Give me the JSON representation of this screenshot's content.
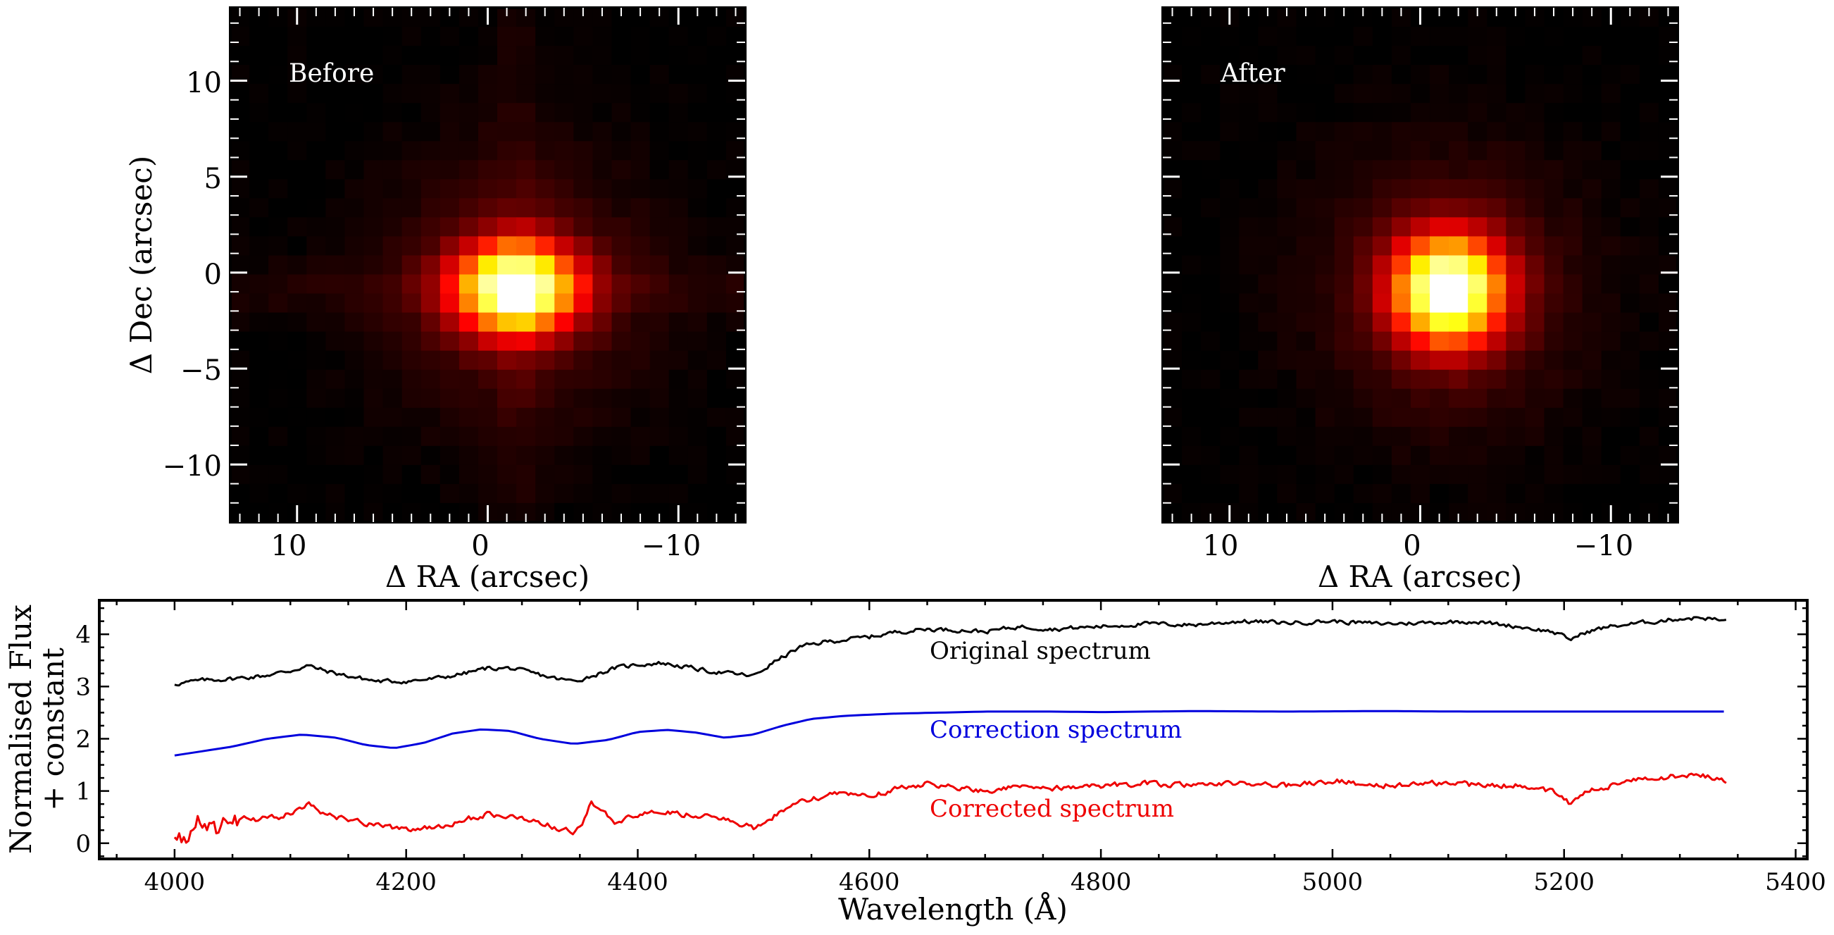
{
  "chart_data": [
    {
      "type": "heatmap",
      "title": "",
      "panel_label": "Before",
      "xlabel": "Δ RA (arcsec)",
      "ylabel": "Δ Dec (arcsec)",
      "xlim": [
        13.5,
        -13.5
      ],
      "ylim": [
        -13,
        13.8
      ],
      "x_ticks": [
        10,
        0,
        -10
      ],
      "x_tick_labels": [
        "10",
        "0",
        "−10"
      ],
      "y_ticks": [
        10,
        5,
        0,
        -5,
        -10
      ],
      "y_tick_labels": [
        "10",
        "5",
        "0",
        "−5",
        "−10"
      ],
      "colormap": "hot",
      "peak_position": [
        -1.5,
        -0.8
      ],
      "peak_shape": "elongated east-west",
      "grid": false
    },
    {
      "type": "heatmap",
      "title": "",
      "panel_label": "After",
      "xlabel": "Δ RA (arcsec)",
      "ylabel": "",
      "xlim": [
        13.5,
        -13.5
      ],
      "ylim": [
        -13,
        13.8
      ],
      "x_ticks": [
        10,
        0,
        -10
      ],
      "x_tick_labels": [
        "10",
        "0",
        "−10"
      ],
      "y_ticks": [
        10,
        5,
        0,
        -5,
        -10
      ],
      "colormap": "hot",
      "peak_position": [
        -1.5,
        -0.9
      ],
      "peak_shape": "round",
      "grid": false
    },
    {
      "type": "line",
      "title": "",
      "xlabel": "Wavelength (Å)",
      "ylabel_line1": "Normalised Flux",
      "ylabel_line2": "+ constant",
      "xlim": [
        3935,
        5410
      ],
      "ylim": [
        -0.3,
        4.65
      ],
      "x_ticks": [
        4000,
        4200,
        4400,
        4600,
        4800,
        5000,
        5200,
        5400
      ],
      "y_ticks": [
        0,
        1,
        2,
        3,
        4
      ],
      "grid": false,
      "series": [
        {
          "name": "Original spectrum",
          "color": "#000000",
          "x": [
            4000,
            4025,
            4050,
            4075,
            4100,
            4115,
            4130,
            4150,
            4175,
            4200,
            4225,
            4250,
            4270,
            4290,
            4310,
            4330,
            4345,
            4360,
            4380,
            4400,
            4420,
            4440,
            4460,
            4480,
            4500,
            4520,
            4540,
            4560,
            4580,
            4600,
            4625,
            4650,
            4680,
            4700,
            4730,
            4760,
            4800,
            4840,
            4880,
            4920,
            4960,
            5000,
            5040,
            5080,
            5120,
            5160,
            5190,
            5205,
            5220,
            5240,
            5260,
            5280,
            5300,
            5320,
            5340
          ],
          "y": [
            3.05,
            3.12,
            3.15,
            3.2,
            3.3,
            3.4,
            3.3,
            3.2,
            3.1,
            3.1,
            3.15,
            3.25,
            3.35,
            3.35,
            3.25,
            3.15,
            3.1,
            3.2,
            3.35,
            3.42,
            3.45,
            3.38,
            3.3,
            3.25,
            3.2,
            3.5,
            3.75,
            3.85,
            3.9,
            3.95,
            4.05,
            4.1,
            4.08,
            4.05,
            4.15,
            4.1,
            4.15,
            4.2,
            4.18,
            4.25,
            4.22,
            4.25,
            4.2,
            4.22,
            4.25,
            4.15,
            4.05,
            3.9,
            4.05,
            4.15,
            4.2,
            4.25,
            4.3,
            4.32,
            4.25
          ]
        },
        {
          "name": "Correction spectrum",
          "color": "#0000dd",
          "x": [
            4000,
            4050,
            4080,
            4110,
            4140,
            4165,
            4190,
            4215,
            4240,
            4265,
            4290,
            4315,
            4345,
            4375,
            4400,
            4425,
            4450,
            4475,
            4500,
            4525,
            4550,
            4580,
            4620,
            4660,
            4700,
            4760,
            4800,
            4880,
            4960,
            5040,
            5120,
            5200,
            5280,
            5340
          ],
          "y": [
            1.68,
            1.85,
            2.0,
            2.08,
            2.02,
            1.88,
            1.82,
            1.92,
            2.1,
            2.18,
            2.15,
            2.0,
            1.9,
            1.98,
            2.13,
            2.17,
            2.12,
            2.02,
            2.08,
            2.25,
            2.38,
            2.44,
            2.48,
            2.5,
            2.52,
            2.52,
            2.51,
            2.53,
            2.52,
            2.53,
            2.52,
            2.52,
            2.52,
            2.52
          ]
        },
        {
          "name": "Corrected spectrum",
          "color": "#ee0000",
          "x": [
            4000,
            4010,
            4020,
            4035,
            4050,
            4070,
            4090,
            4105,
            4115,
            4130,
            4150,
            4175,
            4200,
            4225,
            4250,
            4270,
            4290,
            4310,
            4330,
            4345,
            4355,
            4360,
            4380,
            4400,
            4420,
            4440,
            4460,
            4480,
            4500,
            4520,
            4540,
            4560,
            4580,
            4600,
            4625,
            4650,
            4680,
            4700,
            4730,
            4760,
            4800,
            4840,
            4880,
            4920,
            4960,
            5000,
            5040,
            5080,
            5120,
            5160,
            5190,
            5205,
            5220,
            5240,
            5260,
            5280,
            5300,
            5320,
            5340
          ],
          "y": [
            0.2,
            0.0,
            0.5,
            0.3,
            0.5,
            0.45,
            0.5,
            0.6,
            0.75,
            0.55,
            0.45,
            0.35,
            0.25,
            0.3,
            0.45,
            0.55,
            0.5,
            0.45,
            0.3,
            0.2,
            0.5,
            0.8,
            0.4,
            0.55,
            0.6,
            0.55,
            0.5,
            0.45,
            0.3,
            0.55,
            0.8,
            0.9,
            0.95,
            0.9,
            1.05,
            1.15,
            1.05,
            1.0,
            1.1,
            1.05,
            1.1,
            1.15,
            1.1,
            1.15,
            1.1,
            1.2,
            1.1,
            1.15,
            1.12,
            1.1,
            1.0,
            0.75,
            1.0,
            1.1,
            1.2,
            1.25,
            1.3,
            1.3,
            1.2
          ]
        }
      ]
    }
  ]
}
